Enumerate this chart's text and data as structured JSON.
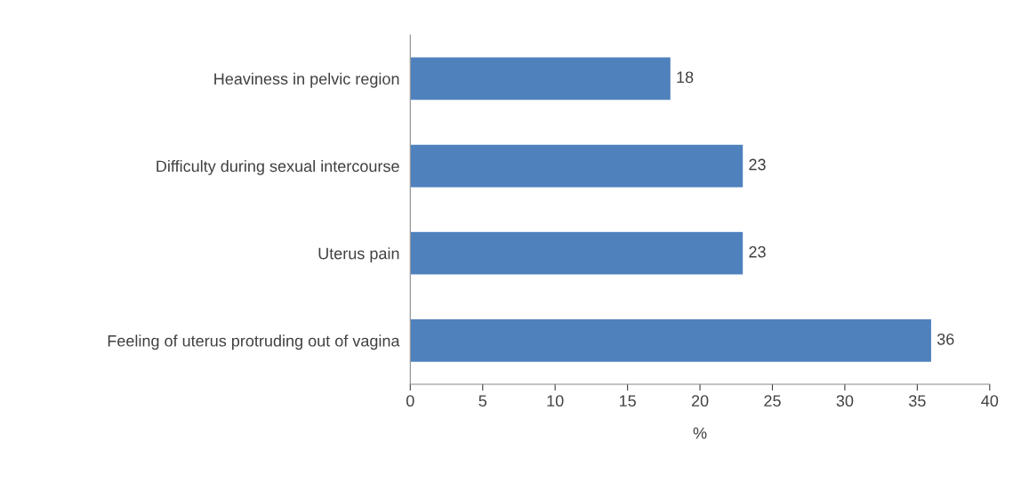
{
  "chart_data": {
    "type": "bar",
    "orientation": "horizontal",
    "xlabel": "%",
    "categories": [
      "Heaviness in pelvic region",
      "Difficulty during sexual intercourse",
      "Uterus pain",
      "Feeling of uterus protruding out of vagina"
    ],
    "values": [
      18,
      23,
      23,
      36
    ],
    "color": "#4f81bd",
    "xlim": [
      0,
      40
    ],
    "xticks": [
      0,
      5,
      10,
      15,
      20,
      25,
      30,
      35,
      40
    ],
    "data_labels": true,
    "grid": false
  }
}
